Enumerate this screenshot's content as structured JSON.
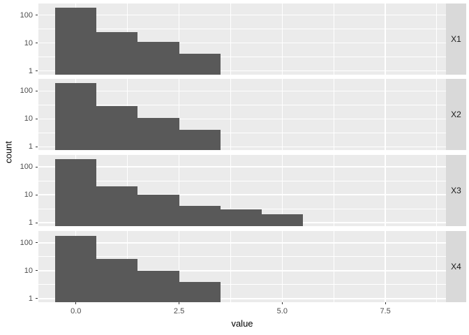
{
  "chart_data": {
    "type": "bar",
    "subtype": "faceted-histogram-log-y",
    "xlabel": "value",
    "ylabel": "count",
    "x_ticks": [
      0.0,
      2.5,
      5.0,
      7.5
    ],
    "x_tick_labels": [
      "0.0",
      "2.5",
      "5.0",
      "7.5"
    ],
    "x_minor_gridlines": [
      1.25,
      3.75,
      6.25,
      8.75
    ],
    "x_range": [
      -0.91,
      8.97
    ],
    "y_scale": "log10",
    "y_ticks": [
      1,
      10,
      100
    ],
    "y_tick_labels": [
      "1",
      "10",
      "100"
    ],
    "y_minor_gridlines": [
      3.1623,
      31.623,
      316.23
    ],
    "y_log_range": [
      -0.125,
      2.425
    ],
    "bin_width": 1,
    "legend": "none",
    "facets": [
      {
        "label": "X1",
        "bin_centers": [
          0,
          1,
          2,
          3
        ],
        "counts": [
          180,
          25,
          11,
          4
        ]
      },
      {
        "label": "X2",
        "bin_centers": [
          0,
          1,
          2,
          3
        ],
        "counts": [
          190,
          28,
          11,
          4
        ]
      },
      {
        "label": "X3",
        "bin_centers": [
          0,
          1,
          2,
          3,
          4,
          5
        ],
        "counts": [
          190,
          20,
          10,
          4,
          3,
          2
        ]
      },
      {
        "label": "X4",
        "bin_centers": [
          0,
          1,
          2,
          3
        ],
        "counts": [
          180,
          27,
          10,
          4
        ]
      }
    ]
  },
  "style": {
    "bar_color": "#595959",
    "panel_bg": "#EBEBEB",
    "strip_bg": "#D9D9D9",
    "grid_color": "#FFFFFF",
    "tick_color": "#333333",
    "tick_label_color": "#4D4D4D",
    "strip_text_color": "#1A1A1A",
    "axis_title_color": "#000000",
    "figure_bg": "#FFFFFF"
  }
}
